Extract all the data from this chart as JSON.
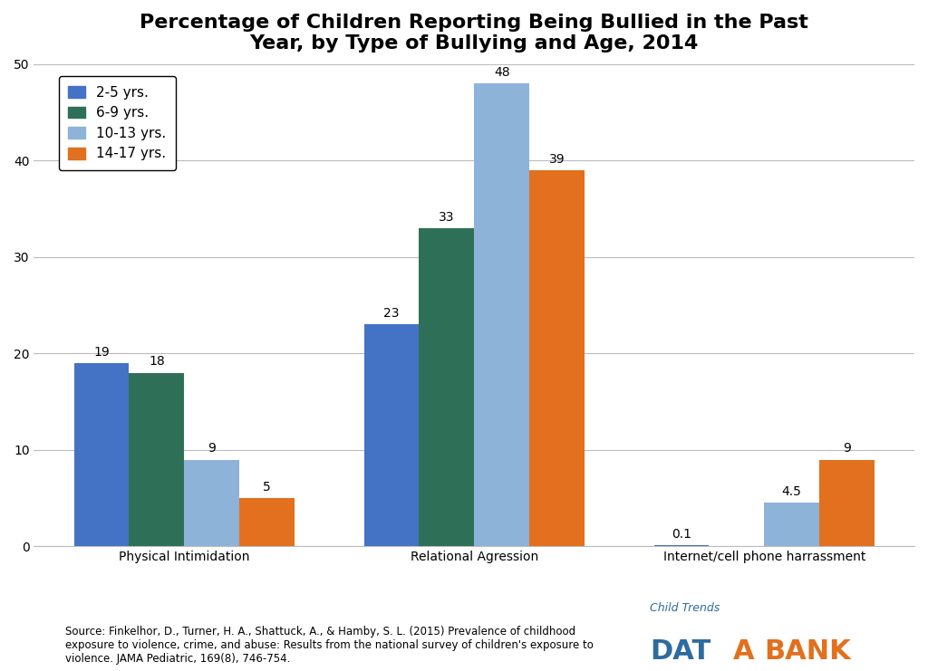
{
  "title": "Percentage of Children Reporting Being Bullied in the Past\nYear, by Type of Bullying and Age, 2014",
  "categories": [
    "Physical Intimidation",
    "Relational Agression",
    "Internet/cell phone harrassment"
  ],
  "age_groups": [
    "2-5 yrs.",
    "6-9 yrs.",
    "10-13 yrs.",
    "14-17 yrs."
  ],
  "colors": [
    "#4472c4",
    "#2e7057",
    "#8db3d9",
    "#e2701e"
  ],
  "values": [
    [
      19,
      18,
      9,
      5
    ],
    [
      23,
      33,
      48,
      39
    ],
    [
      0.1,
      0,
      4.5,
      9
    ]
  ],
  "ylim": [
    0,
    50
  ],
  "yticks": [
    0,
    10,
    20,
    30,
    40,
    50
  ],
  "bar_width": 0.19,
  "source_text": "Source: Finkelhor, D., Turner, H. A., Shattuck, A., & Hamby, S. L. (2015) Prevalence of childhood\nexposure to violence, crime, and abuse: Results from the national survey of children's exposure to\nviolence. JAMA Pediatric, 169(8), 746-754.",
  "background_color": "#ffffff",
  "grid_color": "#bbbbbb",
  "title_fontsize": 16,
  "label_fontsize": 10,
  "tick_fontsize": 10,
  "legend_fontsize": 11,
  "databank_text1": "Child Trends",
  "databank_text2_a": "DAT",
  "databank_text2_b": "A",
  "databank_text3": "BANK",
  "databank_color_blue": "#2e6b9e",
  "databank_color_orange": "#e2701e"
}
